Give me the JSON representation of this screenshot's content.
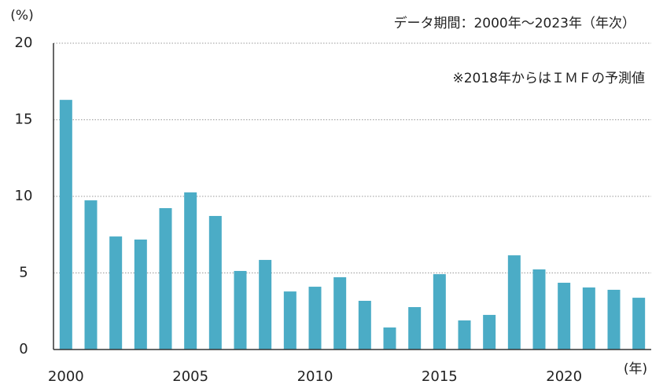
{
  "chart_data": {
    "type": "bar",
    "y_label": "(%)",
    "x_label": "(年)",
    "subtitle": "データ期間：2000年～2023年（年次）",
    "annotation": "※2018年からはＩＭＦの予測値",
    "categories": [
      "2000",
      null,
      null,
      null,
      null,
      "2005",
      null,
      null,
      null,
      null,
      "2010",
      null,
      null,
      null,
      null,
      "2015",
      null,
      null,
      null,
      null,
      "2020",
      null,
      null,
      null
    ],
    "values": [
      16.3,
      9.74,
      7.38,
      7.18,
      9.23,
      10.26,
      8.72,
      5.13,
      5.85,
      3.79,
      4.1,
      4.72,
      3.18,
      1.44,
      2.77,
      4.92,
      1.9,
      2.26,
      6.15,
      5.23,
      4.36,
      4.05,
      3.9,
      3.38
    ],
    "color": "#4bacc6",
    "ylim": [
      0,
      20
    ],
    "yticks": [
      0,
      5,
      10,
      15,
      20
    ],
    "grid": true
  }
}
